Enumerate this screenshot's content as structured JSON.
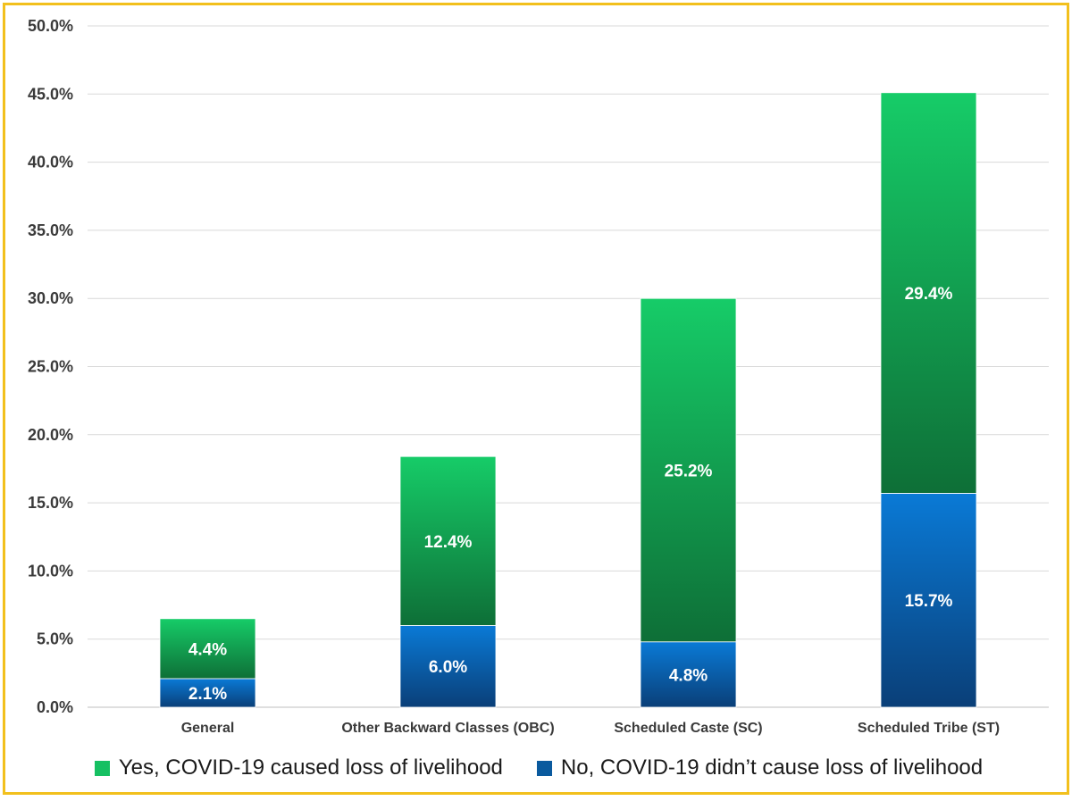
{
  "chart_data": {
    "type": "bar",
    "stacked": true,
    "title": "",
    "xlabel": "",
    "ylabel": "",
    "ylim": [
      0,
      50
    ],
    "yticks": [
      "0.0%",
      "5.0%",
      "10.0%",
      "15.0%",
      "20.0%",
      "25.0%",
      "30.0%",
      "35.0%",
      "40.0%",
      "45.0%",
      "50.0%"
    ],
    "categories": [
      "General",
      "Other Backward Classes (OBC)",
      "Scheduled Caste (SC)",
      "Scheduled Tribe (ST)"
    ],
    "series": [
      {
        "name": "No, COVID-19 didn’t cause loss of livelihood",
        "values": [
          2.1,
          6.0,
          4.8,
          15.7
        ],
        "labels": [
          "2.1%",
          "6.0%",
          "4.8%",
          "15.7%"
        ],
        "color_top": "#0a7ad6",
        "color_bottom": "#0a3f78"
      },
      {
        "name": "Yes, COVID-19 caused loss of livelihood",
        "values": [
          4.4,
          12.4,
          25.2,
          29.4
        ],
        "labels": [
          "4.4%",
          "12.4%",
          "25.2%",
          "29.4%"
        ],
        "color_top": "#16cc68",
        "color_bottom": "#0e6f37"
      }
    ],
    "gridlines": true,
    "legend_position": "bottom"
  },
  "legend": {
    "yes_label": "Yes, COVID-19 caused loss of livelihood",
    "no_label": "No, COVID-19 didn’t cause loss of livelihood",
    "yes_color": "#16c062",
    "no_color": "#0a5a9e"
  }
}
